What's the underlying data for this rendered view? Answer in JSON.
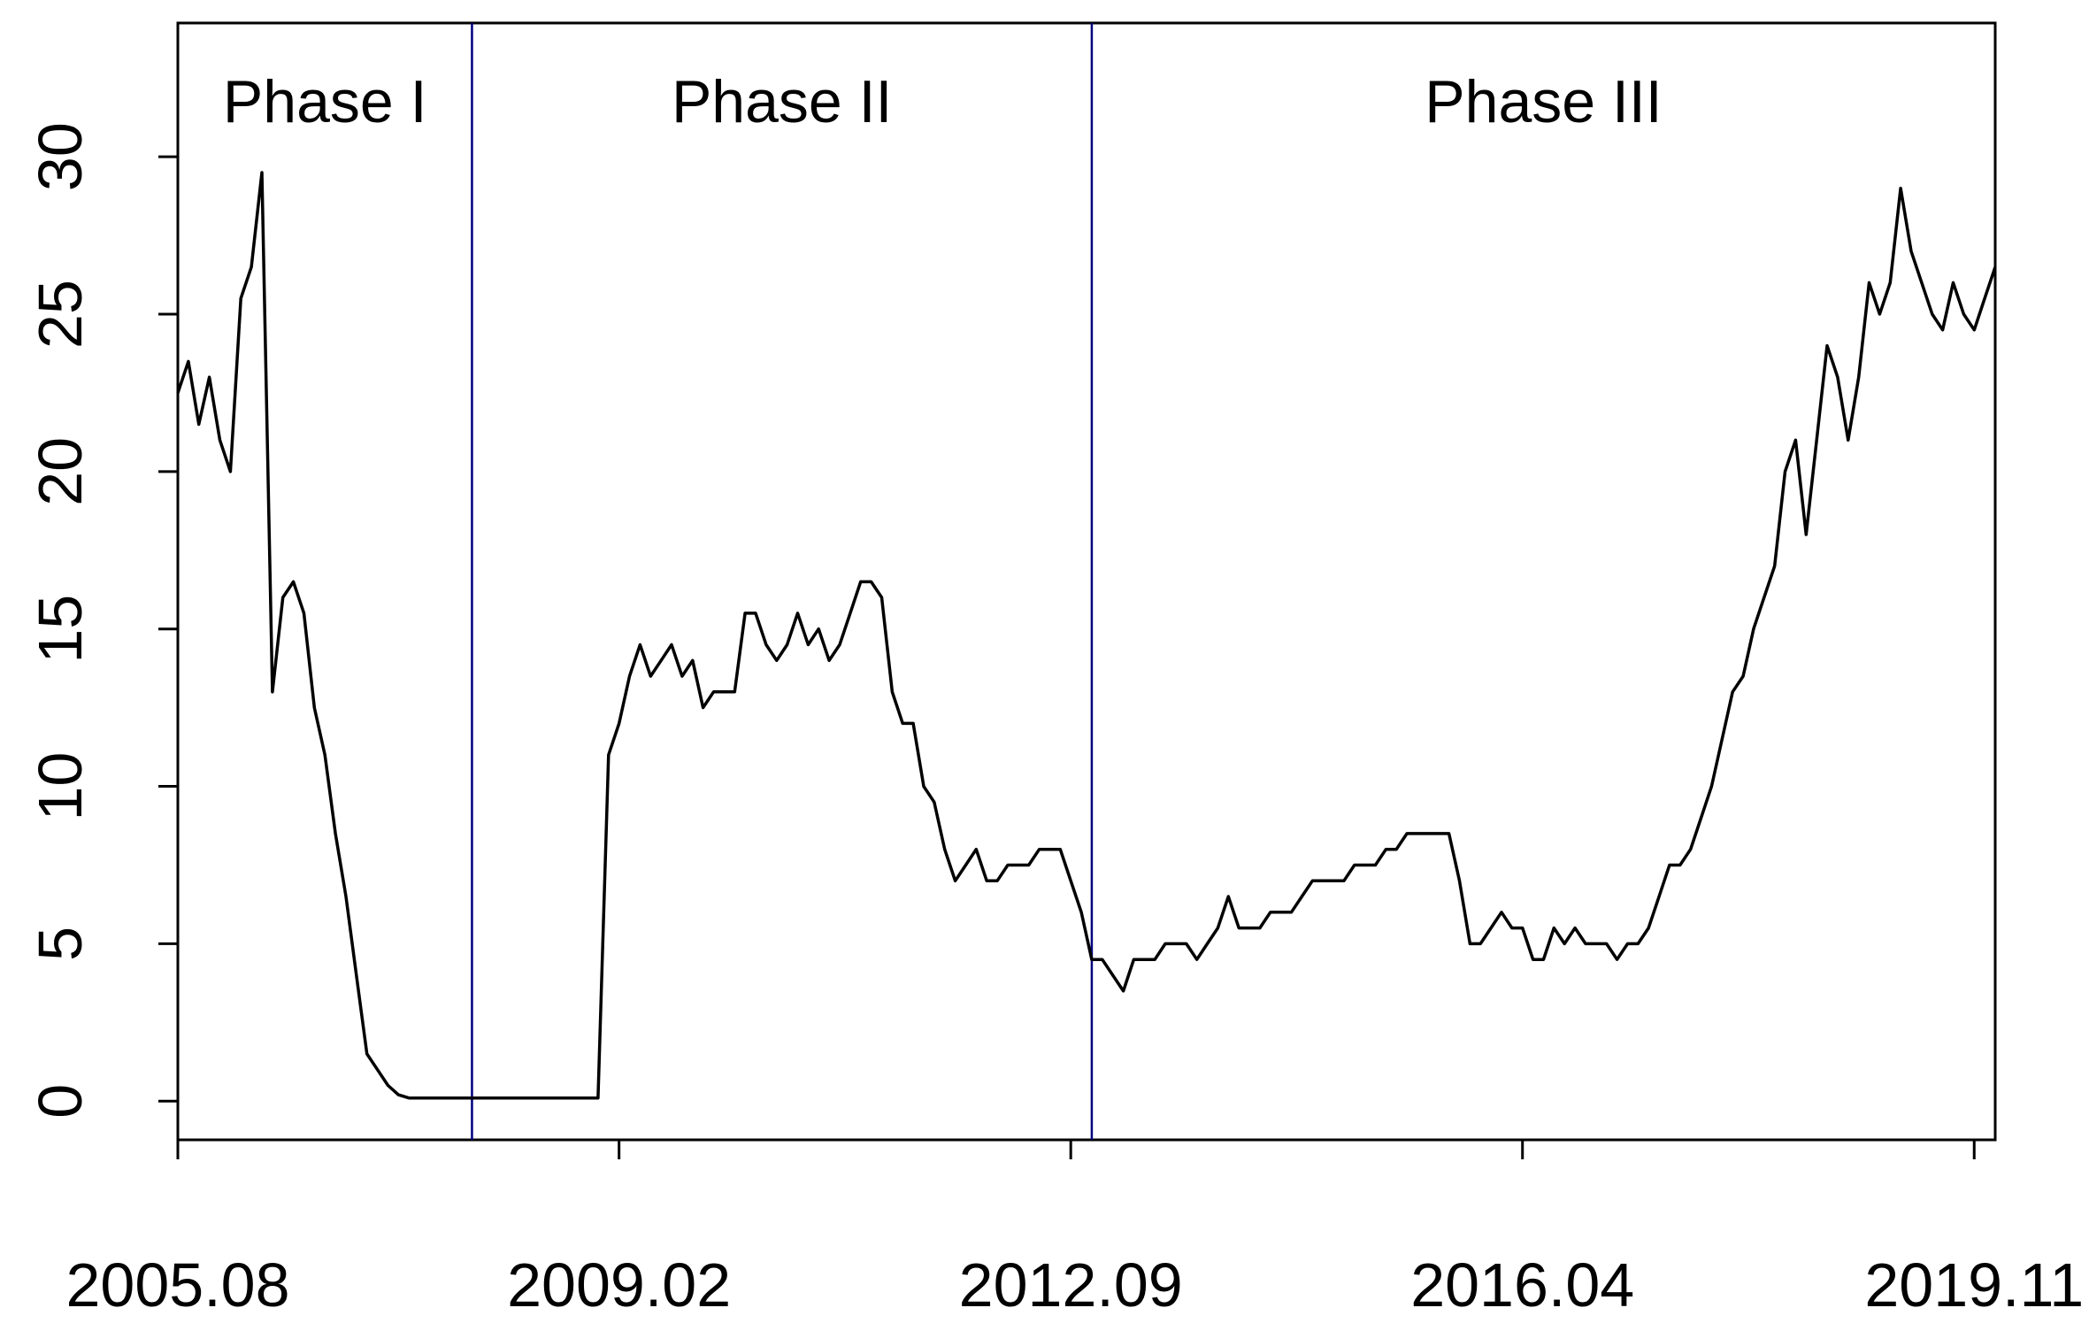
{
  "chart_data": {
    "type": "line",
    "phases": [
      "Phase I",
      "Phase II",
      "Phase III"
    ],
    "phase_breaks": [
      "2007.12",
      "2012.11"
    ],
    "phase_color": "#000080",
    "color": "#000000",
    "xlim": [
      "2005.08",
      "2020.01"
    ],
    "xticks": [
      "2005.08",
      "2009.02",
      "2012.09",
      "2016.04",
      "2019.11"
    ],
    "ylim": [
      -1.23,
      34.25
    ],
    "yticks": [
      0,
      5,
      10,
      15,
      20,
      25,
      30
    ],
    "x": [
      "2005.08",
      "2005.09",
      "2005.10",
      "2005.11",
      "2005.12",
      "2006.01",
      "2006.02",
      "2006.03",
      "2006.04",
      "2006.05",
      "2006.06",
      "2006.07",
      "2006.08",
      "2006.09",
      "2006.10",
      "2006.11",
      "2006.12",
      "2007.01",
      "2007.02",
      "2007.03",
      "2007.04",
      "2007.05",
      "2007.06",
      "2008.12",
      "2009.01",
      "2009.02",
      "2009.03",
      "2009.04",
      "2009.05",
      "2009.06",
      "2009.07",
      "2009.08",
      "2009.09",
      "2009.10",
      "2009.11",
      "2009.12",
      "2010.01",
      "2010.02",
      "2010.03",
      "2010.04",
      "2010.05",
      "2010.06",
      "2010.07",
      "2010.08",
      "2010.09",
      "2010.10",
      "2010.11",
      "2010.12",
      "2011.01",
      "2011.02",
      "2011.03",
      "2011.04",
      "2011.05",
      "2011.06",
      "2011.07",
      "2011.08",
      "2011.09",
      "2011.10",
      "2011.11",
      "2011.12",
      "2012.01",
      "2012.02",
      "2012.03",
      "2012.04",
      "2012.05",
      "2012.06",
      "2012.07",
      "2012.08",
      "2012.09",
      "2012.10",
      "2012.11",
      "2012.12",
      "2013.01",
      "2013.02",
      "2013.03",
      "2013.04",
      "2013.05",
      "2013.06",
      "2013.07",
      "2013.08",
      "2013.09",
      "2013.10",
      "2013.11",
      "2013.12",
      "2014.01",
      "2014.02",
      "2014.03",
      "2014.04",
      "2014.05",
      "2014.06",
      "2014.07",
      "2014.08",
      "2014.09",
      "2014.10",
      "2014.11",
      "2014.12",
      "2015.01",
      "2015.02",
      "2015.03",
      "2015.04",
      "2015.05",
      "2015.06",
      "2015.07",
      "2015.08",
      "2015.09",
      "2015.10",
      "2015.11",
      "2015.12",
      "2016.01",
      "2016.02",
      "2016.03",
      "2016.04",
      "2016.05",
      "2016.06",
      "2016.07",
      "2016.08",
      "2016.09",
      "2016.10",
      "2016.11",
      "2016.12",
      "2017.01",
      "2017.02",
      "2017.03",
      "2017.04",
      "2017.05",
      "2017.06",
      "2017.07",
      "2017.08",
      "2017.09",
      "2017.10",
      "2017.11",
      "2017.12",
      "2018.01",
      "2018.02",
      "2018.03",
      "2018.04",
      "2018.05",
      "2018.06",
      "2018.07",
      "2018.08",
      "2018.09",
      "2018.10",
      "2018.11",
      "2018.12",
      "2019.01",
      "2019.02",
      "2019.03",
      "2019.04",
      "2019.05",
      "2019.06",
      "2019.07",
      "2019.08",
      "2019.09",
      "2019.10",
      "2019.11",
      "2019.12",
      "2020.01"
    ],
    "values": [
      22.5,
      23.5,
      21.5,
      23,
      21,
      20,
      25.5,
      26.5,
      29.5,
      13,
      16,
      16.5,
      15.5,
      12.5,
      11,
      8.5,
      6.5,
      4,
      1.5,
      1,
      0.5,
      0.2,
      0.1,
      0.1,
      11,
      12,
      13.5,
      14.5,
      13.5,
      14,
      14.5,
      13.5,
      14,
      12.5,
      13,
      13,
      13,
      15.5,
      15.5,
      14.5,
      14,
      14.5,
      15.5,
      14.5,
      15,
      14,
      14.5,
      15.5,
      16.5,
      16.5,
      16,
      13,
      12,
      12,
      10,
      9.5,
      8,
      7,
      7.5,
      8,
      7,
      7,
      7.5,
      7.5,
      7.5,
      8,
      8,
      8,
      7,
      6,
      4.5,
      4.5,
      4,
      3.5,
      4.5,
      4.5,
      4.5,
      5,
      5,
      5,
      4.5,
      5,
      5.5,
      6.5,
      5.5,
      5.5,
      5.5,
      6,
      6,
      6,
      6.5,
      7,
      7,
      7,
      7,
      7.5,
      7.5,
      7.5,
      8,
      8,
      8.5,
      8.5,
      8.5,
      8.5,
      8.5,
      7,
      5,
      5,
      5.5,
      6,
      5.5,
      5.5,
      4.5,
      4.5,
      5.5,
      5,
      5.5,
      5,
      5,
      5,
      4.5,
      5,
      5,
      5.5,
      6.5,
      7.5,
      7.5,
      8,
      9,
      10,
      11.5,
      13,
      13.5,
      15,
      16,
      17,
      20,
      21,
      18,
      21,
      24,
      23,
      21,
      23,
      26,
      25,
      26,
      29,
      27,
      26,
      25,
      24.5,
      26,
      25,
      24.5,
      25.5,
      26.5
    ]
  }
}
